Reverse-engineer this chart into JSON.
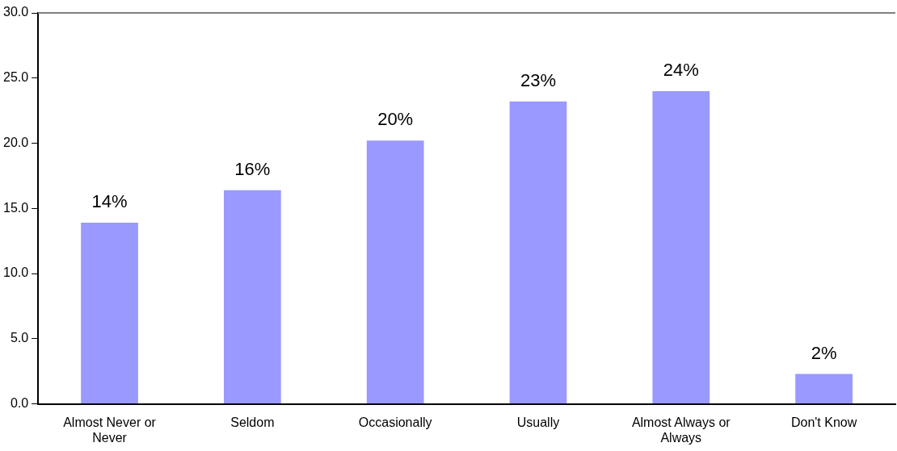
{
  "chart_data": {
    "type": "bar",
    "categories": [
      "Almost Never or Never",
      "Seldom",
      "Occasionally",
      "Usually",
      "Almost Always or Always",
      "Don't Know"
    ],
    "values": [
      13.9,
      16.4,
      20.2,
      23.2,
      24.0,
      2.3
    ],
    "value_labels": [
      "14%",
      "16%",
      "20%",
      "23%",
      "24%",
      "2%"
    ],
    "color": "#9999ff",
    "ylim": [
      0,
      30
    ],
    "yticks": [
      {
        "value": 0,
        "label": "0.0"
      },
      {
        "value": 5,
        "label": "5.0"
      },
      {
        "value": 10,
        "label": "10.0"
      },
      {
        "value": 15,
        "label": "15.0"
      },
      {
        "value": 20,
        "label": "20.0"
      },
      {
        "value": 25,
        "label": "25.0"
      },
      {
        "value": 30,
        "label": "30.0"
      }
    ],
    "grid": false,
    "legend": false
  }
}
